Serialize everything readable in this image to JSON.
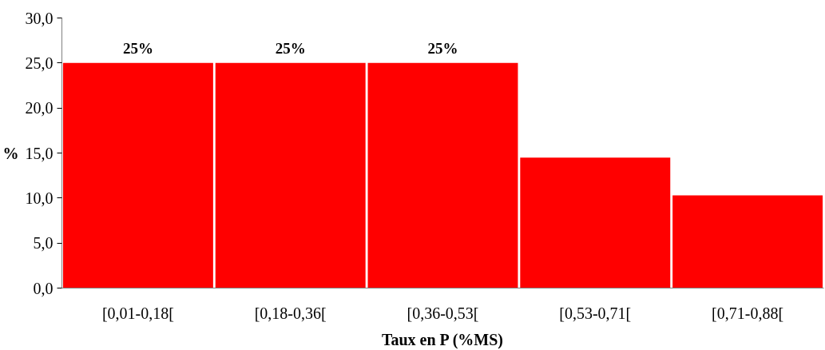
{
  "chart_data": {
    "type": "bar",
    "xlabel": "Taux en P (%MS)",
    "ylabel": "%",
    "categories": [
      "[0,01-0,18[",
      "[0,18-0,36[",
      "[0,36-0,53[",
      "[0,53-0,71[",
      "[0,71-0,88["
    ],
    "values": [
      25,
      25,
      25,
      14.5,
      10.3
    ],
    "color": "#ff0000",
    "value_labels": [
      "25%",
      "25%",
      "25%",
      null,
      null
    ],
    "ylim": [
      0,
      30
    ],
    "yticks": [
      {
        "value": 0,
        "label": "0,0"
      },
      {
        "value": 5,
        "label": "5,0"
      },
      {
        "value": 10,
        "label": "10,0"
      },
      {
        "value": 15,
        "label": "15,0"
      },
      {
        "value": 20,
        "label": "20,0"
      },
      {
        "value": 25,
        "label": "25,0"
      },
      {
        "value": 30,
        "label": "30,0"
      }
    ],
    "grid": false
  }
}
